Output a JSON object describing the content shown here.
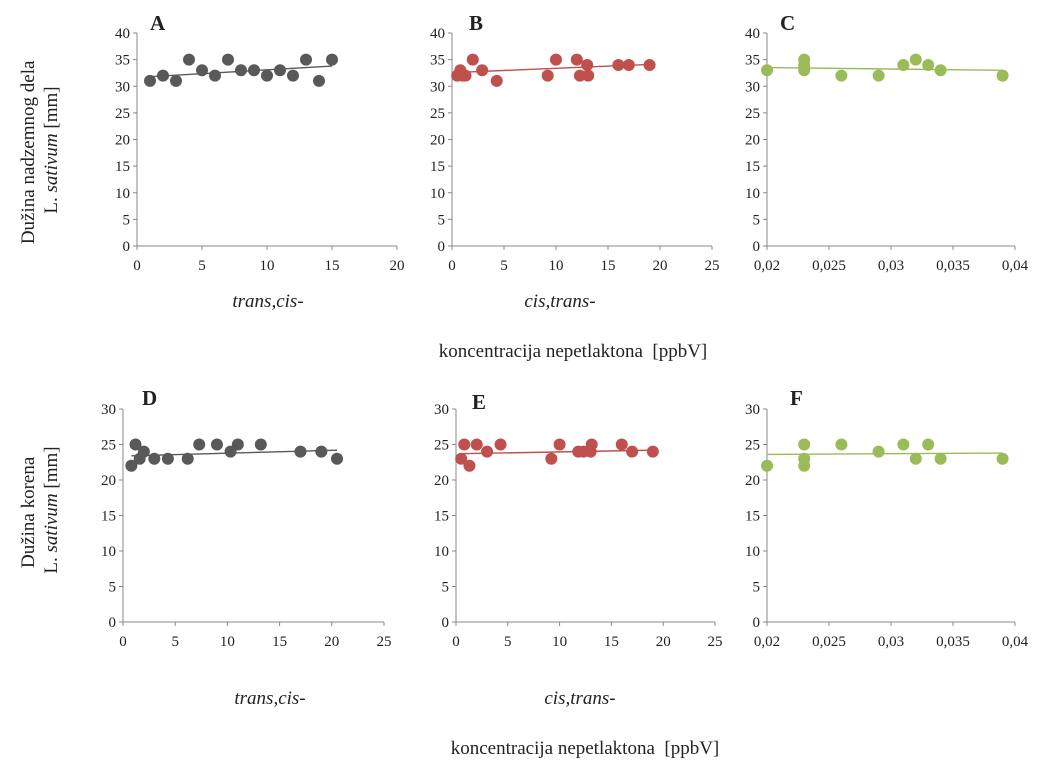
{
  "figure": {
    "x_axis_title": "koncentracija nepetlaktona  [ppbV]",
    "y_titles": [
      {
        "line1": "Dužina nadzemnog dela",
        "line2_plain": "L. ",
        "line2_italic": "sativum",
        "line2_unit": " [mm]"
      },
      {
        "line1": "Dužina korena",
        "line2_plain": "L. ",
        "line2_italic": "sativum",
        "line2_unit": " [mm]"
      }
    ],
    "x_subtitles": [
      "trans,cis-",
      "cis,trans-",
      "trans,cis-",
      "cis,trans-"
    ]
  },
  "chart_data": [
    {
      "type": "scatter",
      "panel": "A",
      "color": "#595959",
      "xlim": [
        0,
        20
      ],
      "ylim": [
        0,
        40
      ],
      "xticks": [
        "0",
        "5",
        "10",
        "15",
        "20"
      ],
      "yticks": [
        "0",
        "5",
        "10",
        "15",
        "20",
        "25",
        "30",
        "35",
        "40"
      ],
      "x": [
        1,
        2,
        3,
        4,
        5,
        6,
        7,
        8,
        9,
        10,
        11,
        12,
        13,
        14,
        15
      ],
      "y": [
        31,
        32,
        31,
        35,
        33,
        32,
        35,
        33,
        33,
        32,
        33,
        32,
        35,
        31,
        35
      ],
      "trendline": [
        [
          1,
          31.8
        ],
        [
          15,
          33.8
        ]
      ]
    },
    {
      "type": "scatter",
      "panel": "B",
      "color": "#c0504d",
      "xlim": [
        0,
        25
      ],
      "ylim": [
        0,
        40
      ],
      "xticks": [
        "0",
        "5",
        "10",
        "15",
        "20",
        "25"
      ],
      "yticks": [
        "0",
        "5",
        "10",
        "15",
        "20",
        "25",
        "30",
        "35",
        "40"
      ],
      "x": [
        0.5,
        0.8,
        1.0,
        1.3,
        2.0,
        2.9,
        4.3,
        9.2,
        10.0,
        12.0,
        12.3,
        13.0,
        13.1,
        16.0,
        17.0,
        19.0
      ],
      "y": [
        32,
        33,
        32,
        32,
        35,
        33,
        31,
        32,
        35,
        35,
        32,
        34,
        32,
        34,
        34,
        34
      ],
      "trendline": [
        [
          0.5,
          32.6
        ],
        [
          19,
          34.1
        ]
      ]
    },
    {
      "type": "scatter",
      "panel": "C",
      "color": "#9bbb59",
      "xlim": [
        0.02,
        0.04
      ],
      "ylim": [
        0,
        40
      ],
      "xticks": [
        "0,02",
        "0,025",
        "0,03",
        "0,035",
        "0,04"
      ],
      "yticks": [
        "0",
        "5",
        "10",
        "15",
        "20",
        "25",
        "30",
        "35",
        "40"
      ],
      "x": [
        0.02,
        0.023,
        0.023,
        0.023,
        0.026,
        0.029,
        0.031,
        0.032,
        0.033,
        0.034,
        0.039
      ],
      "y": [
        33,
        35,
        34,
        33,
        32,
        32,
        34,
        35,
        34,
        33,
        32
      ],
      "trendline": [
        [
          0.02,
          33.5
        ],
        [
          0.039,
          33.0
        ]
      ]
    },
    {
      "type": "scatter",
      "panel": "D",
      "color": "#595959",
      "xlim": [
        0,
        25
      ],
      "ylim": [
        0,
        30
      ],
      "xticks": [
        "0",
        "5",
        "10",
        "15",
        "20",
        "25"
      ],
      "yticks": [
        "0",
        "5",
        "10",
        "15",
        "20",
        "25",
        "30"
      ],
      "x": [
        0.8,
        1.2,
        1.6,
        2.0,
        3.0,
        4.3,
        6.2,
        7.3,
        9.0,
        10.3,
        11.0,
        13.2,
        17.0,
        19.0,
        20.5
      ],
      "y": [
        22,
        25,
        23,
        24,
        23,
        23,
        23,
        25,
        25,
        24,
        25,
        25,
        24,
        24,
        23
      ],
      "trendline": [
        [
          0.8,
          23.4
        ],
        [
          20.5,
          24.2
        ]
      ]
    },
    {
      "type": "scatter",
      "panel": "E",
      "color": "#c0504d",
      "xlim": [
        0,
        25
      ],
      "ylim": [
        0,
        30
      ],
      "xticks": [
        "0",
        "5",
        "10",
        "15",
        "20",
        "25"
      ],
      "yticks": [
        "0",
        "5",
        "10",
        "15",
        "20",
        "25",
        "30"
      ],
      "x": [
        0.5,
        0.8,
        1.3,
        2.0,
        3.0,
        4.3,
        9.2,
        10.0,
        11.8,
        12.3,
        13.0,
        13.1,
        16.0,
        17.0,
        19.0
      ],
      "y": [
        23,
        25,
        22,
        25,
        24,
        25,
        23,
        25,
        24,
        24,
        24,
        25,
        25,
        24,
        24
      ],
      "trendline": [
        [
          0.5,
          23.7
        ],
        [
          19,
          24.2
        ]
      ]
    },
    {
      "type": "scatter",
      "panel": "F",
      "color": "#9bbb59",
      "xlim": [
        0.02,
        0.04
      ],
      "ylim": [
        0,
        30
      ],
      "xticks": [
        "0,02",
        "0,025",
        "0,03",
        "0,035",
        "0,04"
      ],
      "yticks": [
        "0",
        "5",
        "10",
        "15",
        "20",
        "25",
        "30"
      ],
      "x": [
        0.02,
        0.023,
        0.023,
        0.023,
        0.026,
        0.029,
        0.031,
        0.032,
        0.033,
        0.034,
        0.039
      ],
      "y": [
        22,
        25,
        23,
        22,
        25,
        24,
        25,
        23,
        25,
        23,
        23
      ],
      "trendline": [
        [
          0.02,
          23.6
        ],
        [
          0.039,
          23.8
        ]
      ]
    }
  ]
}
